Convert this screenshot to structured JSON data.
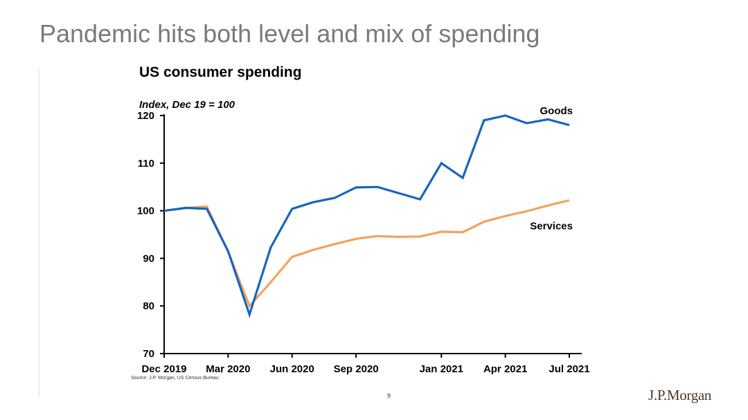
{
  "slide": {
    "title": "Pandemic hits both level and mix of spending",
    "source": "Source: J.P. Morgan, US Census Bureau",
    "page_number": "9",
    "brand": "J.P.Morgan"
  },
  "chart_data": {
    "type": "line",
    "title": "US consumer spending",
    "ylabel": "Index, Dec 19 = 100",
    "xlabel": "",
    "x": [
      "Dec 2019",
      "Jan 2020",
      "Feb 2020",
      "Mar 2020",
      "Apr 2020",
      "May 2020",
      "Jun 2020",
      "Jul 2020",
      "Aug 2020",
      "Sep 2020",
      "Oct 2020",
      "Nov 2020",
      "Dec 2020",
      "Jan 2021",
      "Feb 2021",
      "Mar 2021",
      "Apr 2021",
      "May 2021",
      "Jun 2021",
      "Jul 2021"
    ],
    "x_tick_labels": [
      "Dec 2019",
      "Mar 2020",
      "Jun 2020",
      "Sep 2020",
      "Jan 2021",
      "Apr 2021",
      "Jul 2021"
    ],
    "ylim": [
      70,
      120
    ],
    "y_ticks": [
      70,
      80,
      90,
      100,
      110,
      120
    ],
    "grid": false,
    "series": [
      {
        "name": "Goods",
        "color": "#1565c0",
        "values": [
          100,
          100.6,
          100.4,
          91.5,
          78.2,
          92.3,
          100.4,
          101.8,
          102.7,
          104.9,
          105.0,
          103.7,
          102.4,
          110.0,
          106.9,
          119.0,
          120.0,
          118.4,
          119.2,
          118.0
        ]
      },
      {
        "name": "Services",
        "color": "#f4a259",
        "values": [
          100,
          100.6,
          100.9,
          91.4,
          80.0,
          85.0,
          90.3,
          91.8,
          93.0,
          94.1,
          94.7,
          94.5,
          94.6,
          95.6,
          95.5,
          97.7,
          98.9,
          99.9,
          101.1,
          102.2
        ]
      }
    ]
  }
}
